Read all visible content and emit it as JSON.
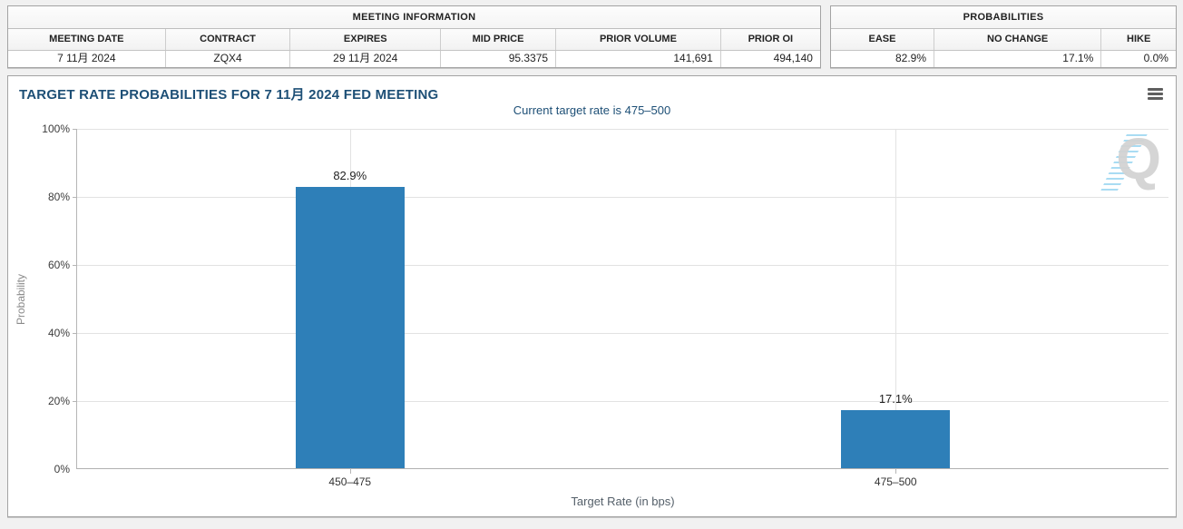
{
  "meeting_info": {
    "title": "MEETING INFORMATION",
    "columns": [
      "MEETING DATE",
      "CONTRACT",
      "EXPIRES",
      "MID PRICE",
      "PRIOR VOLUME",
      "PRIOR OI"
    ],
    "values": [
      "7 11月 2024",
      "ZQX4",
      "29 11月 2024",
      "95.3375",
      "141,691",
      "494,140"
    ]
  },
  "probabilities": {
    "title": "PROBABILITIES",
    "columns": [
      "EASE",
      "NO CHANGE",
      "HIKE"
    ],
    "values": [
      "82.9%",
      "17.1%",
      "0.0%"
    ]
  },
  "chart": {
    "title": "TARGET RATE PROBABILITIES FOR 7 11月 2024 FED MEETING",
    "subtitle": "Current target rate is 475–500",
    "watermark_letter": "Q"
  },
  "chart_data": {
    "type": "bar",
    "categories": [
      "450–475",
      "475–500"
    ],
    "values": [
      82.9,
      17.1
    ],
    "value_labels": [
      "82.9%",
      "17.1%"
    ],
    "title": "TARGET RATE PROBABILITIES FOR 7 11月 2024 FED MEETING",
    "xlabel": "Target Rate (in bps)",
    "ylabel": "Probability",
    "ylim": [
      0,
      100
    ],
    "ytick_labels": [
      "100%",
      "80%",
      "60%",
      "40%",
      "20%",
      "0%"
    ],
    "grid": true,
    "legend_position": "none",
    "bar_color": "#2E7FB8"
  },
  "colors": {
    "bar": "#2E7FB8",
    "title_text": "#1d4f76",
    "page_background": "#f1f1f1",
    "panel_border": "#a3a3a3",
    "gridline": "#e2e2e2"
  }
}
